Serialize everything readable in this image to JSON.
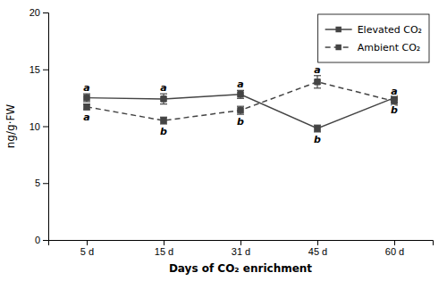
{
  "chart_data": {
    "type": "line",
    "categories": [
      "5 d",
      "15 d",
      "31 d",
      "45 d",
      "60 d"
    ],
    "xlabel": "Days of CO₂ enrichment",
    "ylabel": "ng/g·FW",
    "ylim": [
      0,
      20
    ],
    "yticks": [
      0,
      5,
      10,
      15,
      20
    ],
    "grid": false,
    "legend": "upper right",
    "series": [
      {
        "name": "Elevated CO₂",
        "color": "#444444",
        "marker": "square",
        "line_style": "solid",
        "values": [
          12.5,
          12.4,
          12.8,
          9.8,
          12.5
        ],
        "errors": [
          0.35,
          0.45,
          0.35,
          0.3,
          0.4
        ],
        "annotations": [
          {
            "text": "a",
            "side": "above"
          },
          {
            "text": "a",
            "side": "above"
          },
          {
            "text": "a",
            "side": "above"
          },
          {
            "text": "b",
            "side": "below"
          },
          {
            "text": "b",
            "side": "below"
          }
        ]
      },
      {
        "name": "Ambient CO₂",
        "color": "#444444",
        "marker": "square",
        "line_style": "dashed",
        "values": [
          11.7,
          10.5,
          11.4,
          13.9,
          12.2
        ],
        "errors": [
          0.25,
          0.3,
          0.35,
          0.55,
          0.35
        ],
        "annotations": [
          {
            "text": "a",
            "side": "below"
          },
          {
            "text": "b",
            "side": "below"
          },
          {
            "text": "b",
            "side": "below"
          },
          {
            "text": "a",
            "side": "above"
          },
          {
            "text": "a",
            "side": "above"
          }
        ]
      }
    ]
  }
}
